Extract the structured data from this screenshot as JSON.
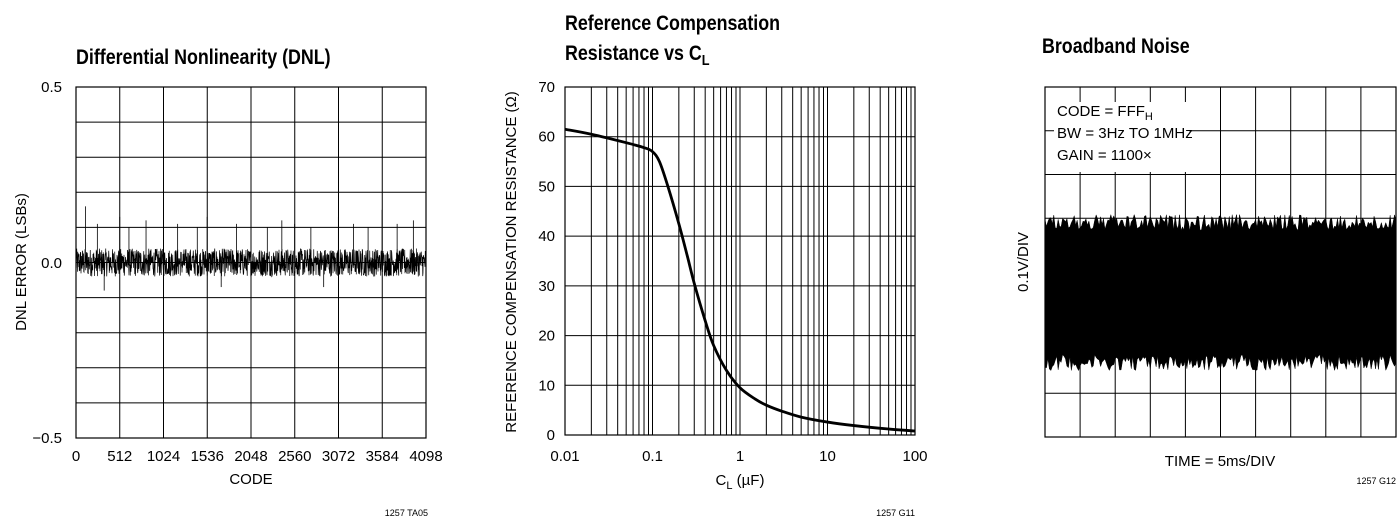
{
  "chart_data": [
    {
      "type": "line",
      "title": "Differential Nonlinearity (DNL)",
      "xlabel": "CODE",
      "ylabel": "DNL ERROR (LSBs)",
      "xlim": [
        0,
        4098
      ],
      "ylim": [
        -0.5,
        0.5
      ],
      "x_ticks": [
        "0",
        "512",
        "1024",
        "1536",
        "2048",
        "2560",
        "3072",
        "3584",
        "4098"
      ],
      "y_ticks": [
        "0.5",
        "0.0",
        "−0.5"
      ],
      "grid": true,
      "noise_band": [
        -0.04,
        0.04
      ],
      "spikes": [
        {
          "x": 110,
          "y": 0.16
        },
        {
          "x": 250,
          "y": 0.11
        },
        {
          "x": 330,
          "y": -0.08
        },
        {
          "x": 512,
          "y": 0.13
        },
        {
          "x": 620,
          "y": 0.1
        },
        {
          "x": 820,
          "y": 0.12
        },
        {
          "x": 1024,
          "y": 0.15
        },
        {
          "x": 1190,
          "y": 0.11
        },
        {
          "x": 1420,
          "y": 0.1
        },
        {
          "x": 1536,
          "y": 0.13
        },
        {
          "x": 1700,
          "y": -0.07
        },
        {
          "x": 1880,
          "y": 0.11
        },
        {
          "x": 2048,
          "y": 0.14
        },
        {
          "x": 2240,
          "y": 0.1
        },
        {
          "x": 2410,
          "y": 0.12
        },
        {
          "x": 2560,
          "y": 0.11
        },
        {
          "x": 2750,
          "y": 0.1
        },
        {
          "x": 2900,
          "y": -0.07
        },
        {
          "x": 3072,
          "y": 0.13
        },
        {
          "x": 3250,
          "y": 0.11
        },
        {
          "x": 3420,
          "y": 0.1
        },
        {
          "x": 3584,
          "y": 0.15
        },
        {
          "x": 3760,
          "y": 0.11
        },
        {
          "x": 3950,
          "y": 0.12
        }
      ],
      "figure_code": "1257 TA05"
    },
    {
      "type": "line",
      "title_line1": "Reference Compensation",
      "title_line2_main": "Resistance vs C",
      "title_line2_sub": "L",
      "xlabel_main": "C",
      "xlabel_sub": "L",
      "xlabel_unit": " (µF)",
      "ylabel": "REFERENCE COMPENSATION RESISTANCE (Ω)",
      "x_scale": "log",
      "xlim": [
        0.01,
        100
      ],
      "ylim": [
        0,
        70
      ],
      "x_ticks": [
        "0.01",
        "0.1",
        "1",
        "10",
        "100"
      ],
      "y_ticks": [
        "0",
        "10",
        "20",
        "30",
        "40",
        "50",
        "60",
        "70"
      ],
      "grid": true,
      "x": [
        0.01,
        0.02,
        0.05,
        0.08,
        0.1,
        0.12,
        0.15,
        0.2,
        0.25,
        0.3,
        0.4,
        0.5,
        0.7,
        1,
        1.5,
        2,
        3,
        5,
        10,
        20,
        50,
        100
      ],
      "y": [
        61.5,
        60.5,
        58.8,
        57.8,
        57.0,
        55.0,
        50.0,
        42.5,
        36.0,
        30.5,
        23.0,
        18.0,
        13.0,
        9.5,
        7.2,
        6.0,
        4.8,
        3.6,
        2.6,
        1.9,
        1.2,
        0.8
      ],
      "figure_code": "1257 G11"
    },
    {
      "type": "area",
      "title": "Broadband Noise",
      "xlabel": "TIME = 5ms/DIV",
      "ylabel": "0.1V/DIV",
      "grid": true,
      "annotation_line1_main": "CODE = FFF",
      "annotation_line1_sub": "H",
      "annotation_line2": "BW = 3Hz TO 1MHz",
      "annotation_line3": "GAIN = 1100×",
      "noise_band_divisions": [
        3.1,
        6.3
      ],
      "divisions": {
        "x": 10,
        "y": 8
      },
      "figure_code": "1257 G12"
    }
  ]
}
